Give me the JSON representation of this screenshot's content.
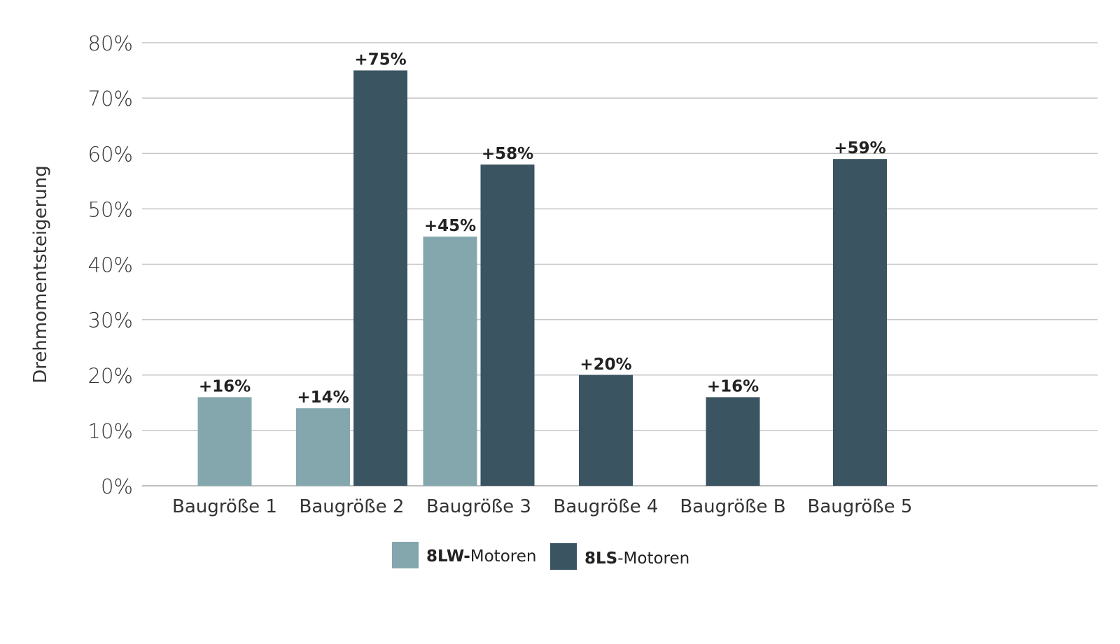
{
  "chart_data": {
    "type": "bar",
    "title": "",
    "xlabel": "",
    "ylabel": "Drehmomentsteigerung",
    "ylim": [
      0,
      80
    ],
    "yticks": [
      "0%",
      "10%",
      "20%",
      "30%",
      "40%",
      "50%",
      "60%",
      "70%",
      "80%"
    ],
    "grid": true,
    "legend_position": "bottom-center",
    "categories": [
      "Baugröße 1",
      "Baugröße 2",
      "Baugröße 3",
      "Baugröße 4",
      "Baugröße B",
      "Baugröße 5"
    ],
    "series": [
      {
        "name": "8LW-Motoren",
        "name_bold": "8LW-",
        "name_rest": "Motoren",
        "color": "#84a7ae",
        "values": [
          16,
          14,
          45,
          null,
          null,
          null
        ],
        "labels": [
          "+16%",
          "+14%",
          "+45%",
          null,
          null,
          null
        ]
      },
      {
        "name": "8LS-Motoren",
        "name_bold": "8LS",
        "name_rest": "-Motoren",
        "color": "#3a5461",
        "values": [
          null,
          75,
          58,
          20,
          16,
          59
        ],
        "labels": [
          null,
          "+75%",
          "+58%",
          "+20%",
          "+16%",
          "+59%"
        ]
      }
    ]
  }
}
